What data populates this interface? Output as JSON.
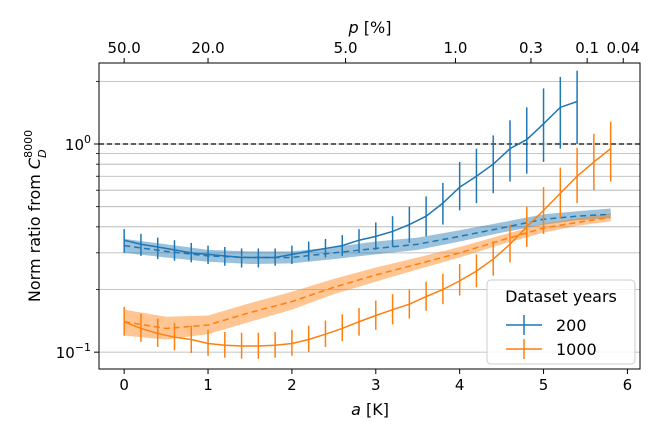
{
  "chart_data": {
    "type": "line",
    "xlabel": "a [K]",
    "xlabel_italic": "a",
    "xlabel_rest": " [K]",
    "ylabel_prefix": "Norm ratio from ",
    "ylabel_symbol": "C",
    "ylabel_sup": "8000",
    "ylabel_sub": "D",
    "top_xlabel_italic": "p",
    "top_xlabel_rest": " [%]",
    "xlim": [
      -0.3,
      6.15
    ],
    "ylim": [
      0.083,
      2.45
    ],
    "yscale": "log",
    "x_ticks": [
      0,
      1,
      2,
      3,
      4,
      5,
      6
    ],
    "x_tick_labels": [
      "0",
      "1",
      "2",
      "3",
      "4",
      "5",
      "6"
    ],
    "y_major_ticks": [
      0.1,
      1.0
    ],
    "y_major_labels": [
      {
        "base": "10",
        "exp": "−1"
      },
      {
        "base": "10",
        "exp": "0"
      }
    ],
    "y_minor_ticks": [
      0.2,
      0.3,
      0.4,
      0.5,
      0.6,
      0.7,
      0.8,
      0.9,
      2.0
    ],
    "top_ticks": [
      0.0,
      1.0,
      2.64,
      3.95,
      4.85,
      5.52,
      5.95
    ],
    "top_tick_labels": [
      "50.0",
      "20.0",
      "5.0",
      "1.0",
      "0.3",
      "0.1",
      "0.04"
    ],
    "reference_line": {
      "y": 1.0,
      "style": "dashed",
      "color": "#000000"
    },
    "legend": {
      "title": "Dataset years",
      "position": "bottom-right",
      "entries": [
        "200",
        "1000"
      ]
    },
    "series": [
      {
        "name": "200",
        "color": "#1f77b4",
        "x": [
          0.0,
          0.2,
          0.4,
          0.6,
          0.8,
          1.0,
          1.2,
          1.4,
          1.6,
          1.8,
          2.0,
          2.2,
          2.4,
          2.6,
          2.8,
          3.0,
          3.2,
          3.4,
          3.6,
          3.8,
          4.0,
          4.2,
          4.4,
          4.6,
          4.8,
          5.0,
          5.2,
          5.4
        ],
        "y": [
          0.345,
          0.33,
          0.32,
          0.31,
          0.3,
          0.295,
          0.29,
          0.285,
          0.285,
          0.285,
          0.295,
          0.305,
          0.315,
          0.325,
          0.345,
          0.36,
          0.38,
          0.41,
          0.45,
          0.52,
          0.62,
          0.7,
          0.8,
          0.95,
          1.05,
          1.25,
          1.5,
          1.6
        ],
        "err_low": [
          0.3,
          0.29,
          0.28,
          0.275,
          0.27,
          0.265,
          0.26,
          0.255,
          0.255,
          0.26,
          0.265,
          0.275,
          0.285,
          0.29,
          0.3,
          0.31,
          0.32,
          0.335,
          0.36,
          0.41,
          0.48,
          0.52,
          0.58,
          0.66,
          0.72,
          0.82,
          0.95,
          1.0
        ],
        "err_high": [
          0.39,
          0.37,
          0.355,
          0.345,
          0.335,
          0.325,
          0.32,
          0.315,
          0.315,
          0.315,
          0.325,
          0.34,
          0.35,
          0.365,
          0.39,
          0.42,
          0.45,
          0.5,
          0.56,
          0.65,
          0.82,
          0.95,
          1.1,
          1.3,
          1.5,
          1.85,
          2.1,
          2.25
        ],
        "mean_x": [
          0.0,
          0.5,
          1.0,
          1.5,
          2.0,
          2.5,
          3.0,
          3.5,
          4.0,
          4.5,
          5.0,
          5.4,
          5.8
        ],
        "mean_y": [
          0.325,
          0.305,
          0.29,
          0.285,
          0.285,
          0.3,
          0.315,
          0.33,
          0.36,
          0.395,
          0.435,
          0.45,
          0.46
        ],
        "band_low": [
          0.3,
          0.285,
          0.272,
          0.265,
          0.267,
          0.28,
          0.295,
          0.31,
          0.34,
          0.375,
          0.41,
          0.43,
          0.44
        ],
        "band_high": [
          0.35,
          0.33,
          0.31,
          0.305,
          0.305,
          0.32,
          0.34,
          0.355,
          0.385,
          0.42,
          0.46,
          0.475,
          0.49
        ]
      },
      {
        "name": "1000",
        "color": "#ff7f0e",
        "x": [
          0.0,
          0.2,
          0.4,
          0.6,
          0.8,
          1.0,
          1.2,
          1.4,
          1.6,
          1.8,
          2.0,
          2.2,
          2.4,
          2.6,
          2.8,
          3.0,
          3.2,
          3.4,
          3.6,
          3.8,
          4.0,
          4.2,
          4.4,
          4.6,
          4.8,
          5.0,
          5.2,
          5.4,
          5.6,
          5.8
        ],
        "y": [
          0.14,
          0.13,
          0.123,
          0.118,
          0.115,
          0.11,
          0.108,
          0.107,
          0.107,
          0.108,
          0.11,
          0.115,
          0.122,
          0.13,
          0.14,
          0.15,
          0.16,
          0.17,
          0.185,
          0.2,
          0.22,
          0.245,
          0.28,
          0.33,
          0.4,
          0.48,
          0.58,
          0.7,
          0.82,
          0.95
        ],
        "err_low": [
          0.12,
          0.112,
          0.106,
          0.102,
          0.099,
          0.096,
          0.094,
          0.093,
          0.093,
          0.094,
          0.096,
          0.1,
          0.106,
          0.113,
          0.12,
          0.128,
          0.136,
          0.145,
          0.158,
          0.17,
          0.187,
          0.205,
          0.233,
          0.27,
          0.32,
          0.37,
          0.44,
          0.52,
          0.6,
          0.66
        ],
        "err_high": [
          0.165,
          0.153,
          0.145,
          0.138,
          0.134,
          0.128,
          0.125,
          0.124,
          0.124,
          0.125,
          0.128,
          0.134,
          0.142,
          0.152,
          0.163,
          0.177,
          0.19,
          0.2,
          0.218,
          0.238,
          0.265,
          0.295,
          0.34,
          0.41,
          0.5,
          0.62,
          0.77,
          0.96,
          1.12,
          1.28
        ],
        "mean_x": [
          0.0,
          0.5,
          1.0,
          1.5,
          2.0,
          2.5,
          3.0,
          3.5,
          4.0,
          4.5,
          5.0,
          5.4,
          5.8
        ],
        "mean_y": [
          0.14,
          0.13,
          0.135,
          0.155,
          0.175,
          0.205,
          0.235,
          0.265,
          0.3,
          0.345,
          0.395,
          0.42,
          0.445
        ],
        "band_low": [
          0.12,
          0.115,
          0.122,
          0.14,
          0.16,
          0.19,
          0.218,
          0.25,
          0.285,
          0.33,
          0.375,
          0.405,
          0.425
        ],
        "band_high": [
          0.16,
          0.148,
          0.15,
          0.172,
          0.195,
          0.225,
          0.255,
          0.285,
          0.32,
          0.365,
          0.415,
          0.44,
          0.465
        ]
      }
    ]
  }
}
